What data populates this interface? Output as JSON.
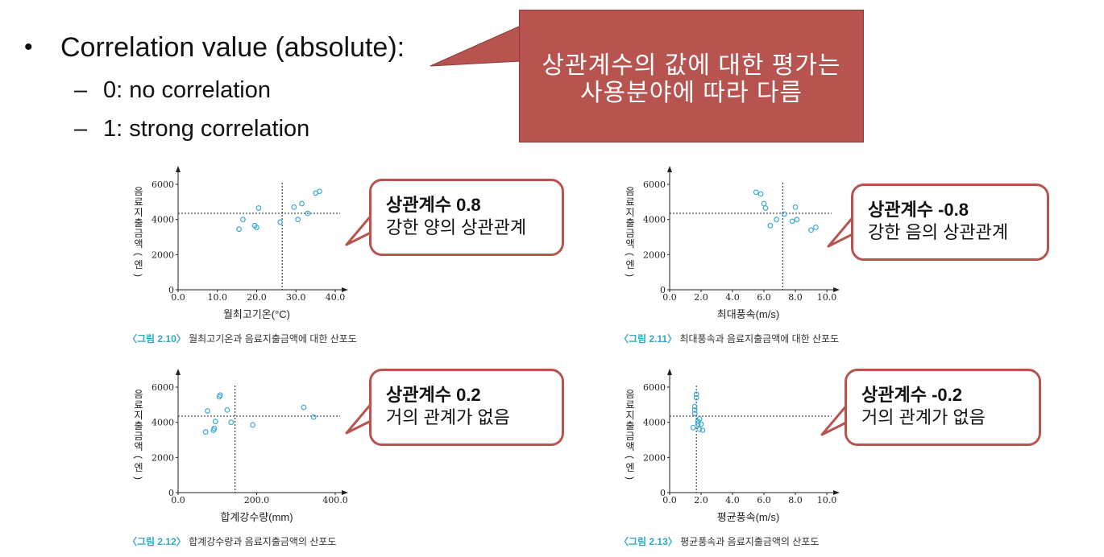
{
  "bullets": {
    "main": "Correlation value (absolute):",
    "sub": [
      "0: no correlation",
      "1: strong correlation"
    ]
  },
  "callout": {
    "line1": "상관계수의 값에 대한 평가는",
    "line2": "사용분야에 따라 다름"
  },
  "colors": {
    "callout_fill": "#b85450",
    "point": "#3aa9d6",
    "caption_fig": "#2fa7c8"
  },
  "panels": [
    {
      "caption_fig": "〈그림 2.10〉",
      "caption_text": "월최고기온과 음료지출금액에 대한 산포도",
      "bubble_title": "상관계수 0.8",
      "bubble_text": "강한 양의 상관관계",
      "chart_data": {
        "type": "scatter",
        "xlabel": "월최고기온(°C)",
        "ylabel": "음료지출금액(엔)",
        "xlim": [
          0,
          40
        ],
        "ylim": [
          0,
          6000
        ],
        "xticks": [
          "0.0",
          "10.0",
          "20.0",
          "30.0",
          "40.0"
        ],
        "yticks": [
          "0",
          "2000",
          "4000",
          "6000"
        ],
        "ref_x": 26.5,
        "ref_y": 4350,
        "x": [
          15.5,
          16.5,
          19.5,
          20.0,
          20.5,
          26.0,
          29.5,
          30.5,
          31.5,
          33.0,
          35.0,
          36.0
        ],
        "y": [
          3450,
          4000,
          3650,
          3550,
          4650,
          3850,
          4700,
          4000,
          4900,
          4350,
          5500,
          5600
        ]
      }
    },
    {
      "caption_fig": "〈그림 2.11〉",
      "caption_text": "최대풍속과 음료지출금액에 대한 산포도",
      "bubble_title": "상관계수 -0.8",
      "bubble_text": "강한 음의 상관관계",
      "chart_data": {
        "type": "scatter",
        "xlabel": "최대풍속(m/s)",
        "ylabel": "음료지출금액(엔)",
        "xlim": [
          0,
          10
        ],
        "ylim": [
          0,
          6000
        ],
        "xticks": [
          "0.0",
          "2.0",
          "4.0",
          "6.0",
          "8.0",
          "10.0"
        ],
        "yticks": [
          "0",
          "2000",
          "4000",
          "6000"
        ],
        "ref_x": 7.2,
        "ref_y": 4350,
        "x": [
          5.5,
          5.8,
          6.0,
          6.1,
          6.4,
          6.8,
          7.3,
          7.8,
          8.0,
          8.1,
          9.0,
          9.3
        ],
        "y": [
          5550,
          5450,
          4900,
          4650,
          3650,
          4000,
          4300,
          3900,
          4700,
          4000,
          3400,
          3550
        ]
      }
    },
    {
      "caption_fig": "〈그림 2.12〉",
      "caption_text": "합계강수량과 음료지출금액의 산포도",
      "bubble_title": "상관계수 0.2",
      "bubble_text": "거의 관계가 없음",
      "chart_data": {
        "type": "scatter",
        "xlabel": "합계강수량(mm)",
        "ylabel": "음료지출금액(엔)",
        "xlim": [
          0,
          400
        ],
        "ylim": [
          0,
          6000
        ],
        "xticks": [
          "0.0",
          "200.0",
          "400.0"
        ],
        "yticks": [
          "0",
          "2000",
          "4000",
          "6000"
        ],
        "ref_x": 145,
        "ref_y": 4350,
        "x": [
          70,
          75,
          90,
          92,
          95,
          105,
          107,
          125,
          135,
          190,
          320,
          345
        ],
        "y": [
          3450,
          4650,
          3550,
          3650,
          4050,
          5450,
          5550,
          4700,
          4000,
          3850,
          4850,
          4300
        ]
      }
    },
    {
      "caption_fig": "〈그림 2.13〉",
      "caption_text": "평균풍속과 음료지출금액의 산포도",
      "bubble_title": "상관계수 -0.2",
      "bubble_text": "거의 관계가 없음",
      "chart_data": {
        "type": "scatter",
        "xlabel": "평균풍속(m/s)",
        "ylabel": "음료지출금액(엔)",
        "xlim": [
          0,
          10
        ],
        "ylim": [
          0,
          6000
        ],
        "xticks": [
          "0.0",
          "2.0",
          "4.0",
          "6.0",
          "8.0",
          "10.0"
        ],
        "yticks": [
          "0",
          "2000",
          "4000",
          "6000"
        ],
        "ref_x": 1.7,
        "ref_y": 4350,
        "x": [
          1.5,
          1.6,
          1.6,
          1.7,
          1.7,
          1.8,
          1.8,
          1.9,
          1.9,
          2.0,
          2.1,
          1.6
        ],
        "y": [
          3700,
          4700,
          4900,
          5400,
          5600,
          4050,
          3900,
          4200,
          3600,
          3900,
          3550,
          4500
        ]
      }
    }
  ]
}
